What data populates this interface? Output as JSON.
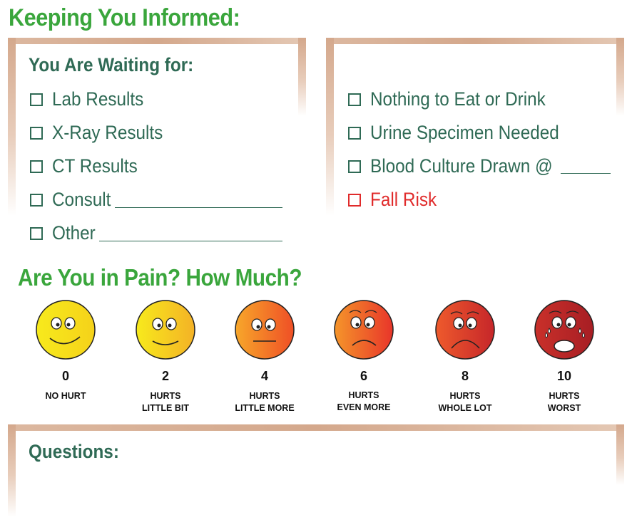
{
  "title": "Keeping You Informed:",
  "waiting_panel": {
    "heading": "You Are Waiting for:",
    "items": [
      "Lab Results",
      "X-Ray Results",
      "CT Results",
      "Consult",
      "Other"
    ]
  },
  "status_panel": {
    "items": [
      "Nothing to Eat or Drink",
      "Urine Specimen Needed",
      "Blood Culture Drawn @"
    ],
    "alert_item": "Fall Risk"
  },
  "pain": {
    "heading": "Are You in Pain? How Much?",
    "scale": [
      {
        "value": "0",
        "line1": "NO HURT",
        "line2": "",
        "expression": "big-smile"
      },
      {
        "value": "2",
        "line1": "HURTS",
        "line2": "LITTLE BIT",
        "expression": "smile"
      },
      {
        "value": "4",
        "line1": "HURTS",
        "line2": "LITTLE MORE",
        "expression": "neutral"
      },
      {
        "value": "6",
        "line1": "HURTS",
        "line2": "EVEN MORE",
        "expression": "frown"
      },
      {
        "value": "8",
        "line1": "HURTS",
        "line2": "WHOLE LOT",
        "expression": "sad"
      },
      {
        "value": "10",
        "line1": "HURTS",
        "line2": "WORST",
        "expression": "crying"
      }
    ]
  },
  "questions": {
    "heading": "Questions:"
  },
  "colors": {
    "green_heading": "#3aa63c",
    "dark_green_text": "#2f6a55",
    "alert_red": "#e02b2b",
    "frame_tan": "#d4a88c"
  }
}
